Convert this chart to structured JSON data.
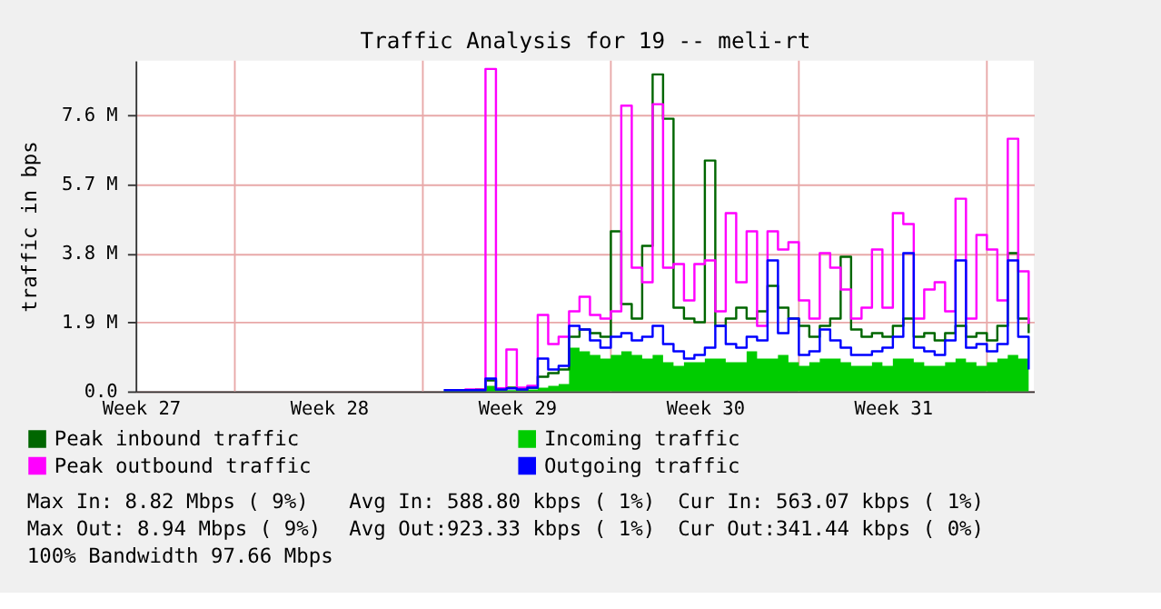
{
  "chart_data": {
    "type": "step",
    "title": "Traffic Analysis for 19 -- meli-rt",
    "ylabel": "traffic in bps",
    "categories": [
      "Week 27",
      null,
      null,
      null,
      null,
      null,
      null,
      null,
      null,
      null,
      null,
      null,
      null,
      null,
      null,
      null,
      null,
      null,
      "Week 28",
      null,
      null,
      null,
      null,
      null,
      null,
      null,
      null,
      null,
      null,
      null,
      null,
      null,
      null,
      null,
      null,
      null,
      "Week 29",
      null,
      null,
      null,
      null,
      null,
      null,
      null,
      null,
      null,
      null,
      null,
      null,
      null,
      null,
      null,
      null,
      null,
      "Week 30",
      null,
      null,
      null,
      null,
      null,
      null,
      null,
      null,
      null,
      null,
      null,
      null,
      null,
      null,
      null,
      null,
      null,
      "Week 31",
      null,
      null,
      null,
      null,
      null,
      null,
      null,
      null,
      null,
      null,
      null,
      null,
      null
    ],
    "series": [
      {
        "name": "Peak inbound traffic",
        "color": "#006600",
        "values": [
          null,
          null,
          null,
          null,
          null,
          null,
          null,
          null,
          null,
          null,
          null,
          null,
          null,
          null,
          null,
          null,
          null,
          null,
          null,
          null,
          null,
          null,
          null,
          null,
          null,
          null,
          null,
          null,
          null,
          null,
          null,
          null,
          0.05,
          0.3,
          0.05,
          0.1,
          0.05,
          0.1,
          0.4,
          0.5,
          0.6,
          1.5,
          1.7,
          1.6,
          1.5,
          4.4,
          2.4,
          2.0,
          4.0,
          8.72,
          7.5,
          2.3,
          2.0,
          1.9,
          6.35,
          1.8,
          2.0,
          2.3,
          2.0,
          2.2,
          2.9,
          2.3,
          2.0,
          1.8,
          1.5,
          1.8,
          2.0,
          3.7,
          1.7,
          1.5,
          1.6,
          1.5,
          1.8,
          2.0,
          1.5,
          1.6,
          1.4,
          1.6,
          1.8,
          1.5,
          1.6,
          1.4,
          1.8,
          3.8,
          2.0,
          1.6
        ]
      },
      {
        "name": "Incoming traffic",
        "type": "area",
        "color": "#00cc00",
        "values": [
          null,
          null,
          null,
          null,
          null,
          null,
          null,
          null,
          null,
          null,
          null,
          null,
          null,
          null,
          null,
          null,
          null,
          null,
          null,
          null,
          null,
          null,
          null,
          null,
          null,
          null,
          null,
          null,
          null,
          0.02,
          0.02,
          0.02,
          0.02,
          0.15,
          0.02,
          0.03,
          0.02,
          0.05,
          0.1,
          0.15,
          0.2,
          1.2,
          1.1,
          1.0,
          0.9,
          1.0,
          1.1,
          1.0,
          0.9,
          1.0,
          0.8,
          0.7,
          0.8,
          0.8,
          0.9,
          0.9,
          0.8,
          0.8,
          1.1,
          0.9,
          0.9,
          1.0,
          0.8,
          0.7,
          0.8,
          0.9,
          0.9,
          0.8,
          0.7,
          0.7,
          0.8,
          0.7,
          0.9,
          0.9,
          0.8,
          0.7,
          0.7,
          0.8,
          0.9,
          0.8,
          0.7,
          0.8,
          0.9,
          1.0,
          0.9,
          0.8
        ]
      },
      {
        "name": "Peak outbound traffic",
        "color": "#ff00ff",
        "values": [
          null,
          null,
          null,
          null,
          null,
          null,
          null,
          null,
          null,
          null,
          null,
          null,
          null,
          null,
          null,
          null,
          null,
          null,
          null,
          null,
          null,
          null,
          null,
          null,
          null,
          null,
          null,
          null,
          null,
          null,
          null,
          0.05,
          0.05,
          8.87,
          0.08,
          1.15,
          0.1,
          0.15,
          2.1,
          1.3,
          1.5,
          2.2,
          2.6,
          2.1,
          2.0,
          2.2,
          7.86,
          3.4,
          3.0,
          7.9,
          3.4,
          3.5,
          2.5,
          3.5,
          3.6,
          2.2,
          4.9,
          3.0,
          4.4,
          1.8,
          4.4,
          3.9,
          4.1,
          2.5,
          2.0,
          3.8,
          3.4,
          2.8,
          2.0,
          2.3,
          3.9,
          2.3,
          4.9,
          4.6,
          2.0,
          2.8,
          3.0,
          2.2,
          5.3,
          2.0,
          4.3,
          3.9,
          2.5,
          6.95,
          3.3,
          1.85
        ]
      },
      {
        "name": "Outgoing traffic",
        "color": "#0000ff",
        "values": [
          null,
          null,
          null,
          null,
          null,
          null,
          null,
          null,
          null,
          null,
          null,
          null,
          null,
          null,
          null,
          null,
          null,
          null,
          null,
          null,
          null,
          null,
          null,
          null,
          null,
          null,
          null,
          null,
          null,
          0.03,
          0.03,
          0.03,
          0.03,
          0.35,
          0.05,
          0.08,
          0.05,
          0.1,
          0.9,
          0.6,
          0.7,
          1.8,
          1.7,
          1.4,
          1.2,
          1.5,
          1.6,
          1.4,
          1.5,
          1.8,
          1.3,
          1.1,
          0.9,
          1.0,
          1.2,
          1.8,
          1.3,
          1.2,
          1.5,
          1.4,
          3.6,
          1.6,
          2.0,
          1.0,
          1.1,
          1.7,
          1.4,
          1.2,
          1.0,
          1.0,
          1.1,
          1.2,
          1.5,
          3.8,
          1.2,
          1.1,
          1.0,
          1.4,
          3.6,
          1.2,
          1.3,
          1.1,
          1.3,
          3.6,
          1.5,
          0.6
        ]
      }
    ],
    "ylim": [
      0,
      9.1
    ],
    "yticks": [
      {
        "value": 0,
        "label": "0.0"
      },
      {
        "value": 1.9,
        "label": "1.9 M"
      },
      {
        "value": 3.8,
        "label": "3.8 M"
      },
      {
        "value": 5.7,
        "label": "5.7 M"
      },
      {
        "value": 7.6,
        "label": "7.6 M"
      }
    ],
    "grid": true,
    "legend": "bottom",
    "annotations": [
      "Max In:   8.82 Mbps ( 9%)",
      "Avg In: 588.80 kbps ( 1%)",
      "Cur In: 563.07 kbps ( 1%)",
      "Max Out:  8.94 Mbps ( 9%)",
      "Avg Out:923.33 kbps ( 1%)",
      "Cur Out:341.44 kbps ( 0%)",
      "100% Bandwidth 97.66 Mbps"
    ]
  }
}
